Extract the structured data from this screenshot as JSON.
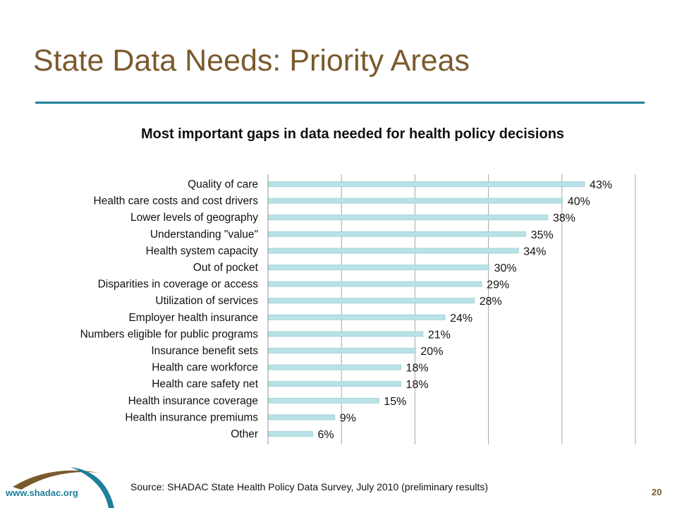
{
  "slide": {
    "title": "State Data Needs: Priority Areas",
    "source": "Source: SHADAC State Health Policy Data Survey, July 2010 (preliminary results)",
    "url": "www.shadac.org",
    "page_number": "20"
  },
  "colors": {
    "title": "#7a5a2c",
    "rule": "#1e7f9a",
    "bar_fill": "#b8e2e6",
    "bar_stroke": "#9ccfd5",
    "grid": "#a6a6a6",
    "logo_brown": "#7a5a2c",
    "logo_teal": "#1e7f9a"
  },
  "chart_data": {
    "type": "bar",
    "orientation": "horizontal",
    "title": "Most important gaps in data needed for health policy decisions",
    "categories": [
      "Quality of care",
      "Health care costs and cost drivers",
      "Lower levels of geography",
      "Understanding \"value\"",
      "Health system capacity",
      "Out of pocket",
      "Disparities in coverage or access",
      "Utilization of services",
      "Employer health insurance",
      "Numbers eligible for public programs",
      "Insurance benefit sets",
      "Health care workforce",
      "Health care safety net",
      "Health insurance coverage",
      "Health insurance premiums",
      "Other"
    ],
    "values": [
      43,
      40,
      38,
      35,
      34,
      30,
      29,
      28,
      24,
      21,
      20,
      18,
      18,
      15,
      9,
      6
    ],
    "value_labels": [
      "43%",
      "40%",
      "38%",
      "35%",
      "34%",
      "30%",
      "29%",
      "28%",
      "24%",
      "21%",
      "20%",
      "18%",
      "18%",
      "15%",
      "9%",
      "6%"
    ],
    "xlim": [
      0,
      50
    ],
    "gridlines": [
      0,
      10,
      20,
      30,
      40,
      50
    ],
    "grid": true,
    "legend": "none"
  }
}
